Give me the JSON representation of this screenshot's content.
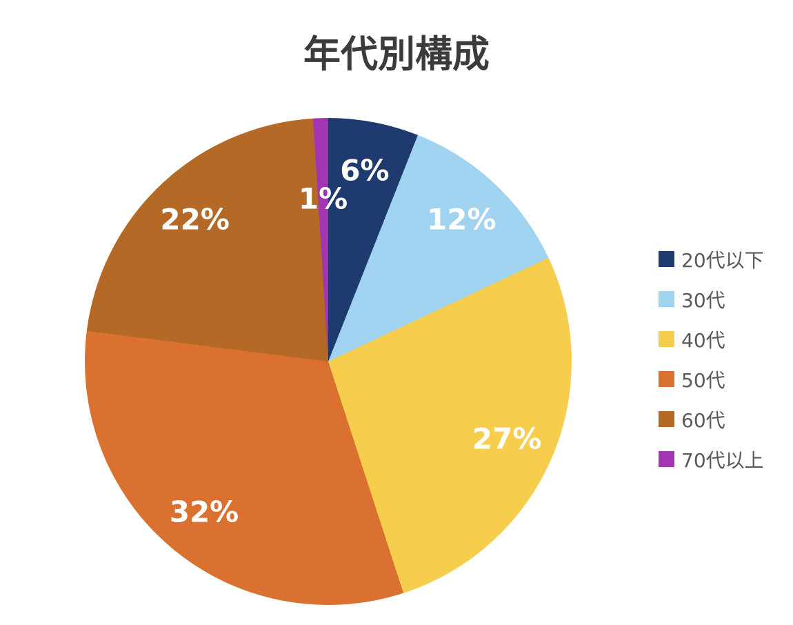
{
  "title": "年代別構成",
  "chart_data": {
    "type": "pie",
    "title": "年代別構成",
    "categories": [
      "20代以下",
      "30代",
      "40代",
      "50代",
      "60代",
      "70代以上"
    ],
    "values": [
      6,
      12,
      27,
      32,
      22,
      1
    ],
    "data_labels": [
      "6%",
      "12%",
      "27%",
      "32%",
      "22%",
      "1%"
    ],
    "colors": [
      "#1F3A6E",
      "#9FD3F0",
      "#F6CD4C",
      "#DB7130",
      "#B46A26",
      "#A435B2"
    ],
    "start_angle_deg": 0,
    "direction": "clockwise",
    "legend_position": "right",
    "data_label_color": "#FFFFFF",
    "title_color": "#3B3B3B",
    "legend_text_color": "#595959",
    "background_color": "#FFFFFF"
  }
}
